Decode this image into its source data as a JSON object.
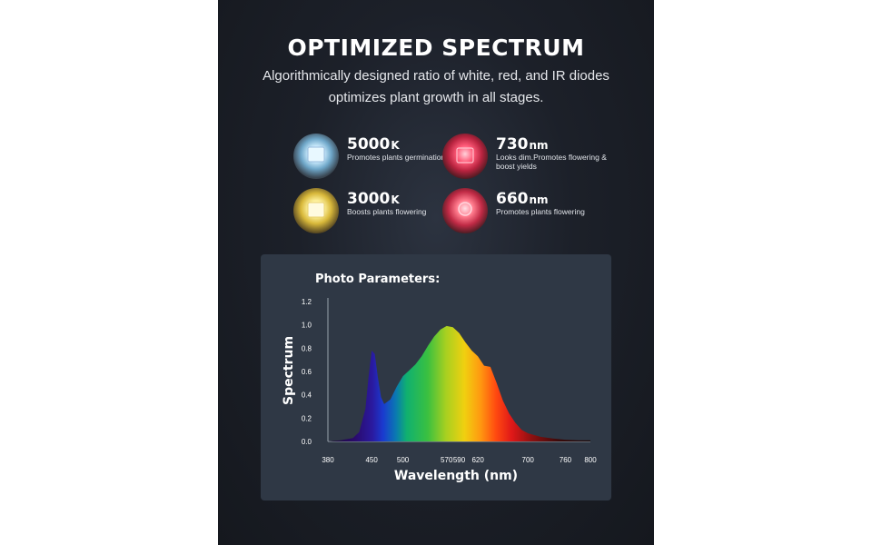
{
  "header": {
    "title": "OPTIMIZED SPECTRUM",
    "subtitle": "Algorithmically designed ratio of white, red, and IR diodes optimizes plant growth in all stages."
  },
  "features": [
    {
      "value": "5000",
      "unit": "K",
      "description": "Promotes plants germination",
      "icon": "white-led-chip-icon",
      "color": "#dff3ff"
    },
    {
      "value": "730",
      "unit": "nm",
      "description": "Looks dim.Promotes flowering & boost yields",
      "icon": "ir-led-chip-icon",
      "color": "#ff5a78"
    },
    {
      "value": "3000",
      "unit": "K",
      "description": "Boosts plants flowering",
      "icon": "warm-white-led-chip-icon",
      "color": "#fff3a0"
    },
    {
      "value": "660",
      "unit": "nm",
      "description": "Promotes plants flowering",
      "icon": "red-led-chip-icon",
      "color": "#ff7a8c"
    }
  ],
  "chart_data": {
    "type": "area",
    "title": "Photo Parameters:",
    "xlabel": "Wavelength (nm)",
    "ylabel": "Spectrum",
    "xlim": [
      380,
      800
    ],
    "ylim": [
      0,
      1.2
    ],
    "x_ticks": [
      "380",
      "450",
      "500",
      "570",
      "590",
      "620",
      "700",
      "760",
      "800"
    ],
    "y_ticks": [
      "0.0",
      "0.2",
      "0.4",
      "0.6",
      "0.8",
      "1.0",
      "1.2"
    ],
    "grid": false,
    "series": [
      {
        "x": [
          380,
          400,
          420,
          430,
          440,
          445,
          450,
          455,
          460,
          465,
          470,
          480,
          490,
          500,
          510,
          520,
          530,
          540,
          550,
          560,
          570,
          580,
          590,
          600,
          610,
          620,
          630,
          640,
          650,
          660,
          670,
          680,
          690,
          700,
          720,
          740,
          760,
          780,
          800
        ],
        "y": [
          0.0,
          0.01,
          0.03,
          0.08,
          0.28,
          0.55,
          0.78,
          0.75,
          0.55,
          0.38,
          0.32,
          0.36,
          0.47,
          0.56,
          0.61,
          0.66,
          0.73,
          0.82,
          0.9,
          0.96,
          0.99,
          0.98,
          0.93,
          0.85,
          0.78,
          0.73,
          0.65,
          0.64,
          0.5,
          0.35,
          0.24,
          0.16,
          0.1,
          0.07,
          0.04,
          0.025,
          0.015,
          0.01,
          0.01
        ]
      }
    ]
  }
}
